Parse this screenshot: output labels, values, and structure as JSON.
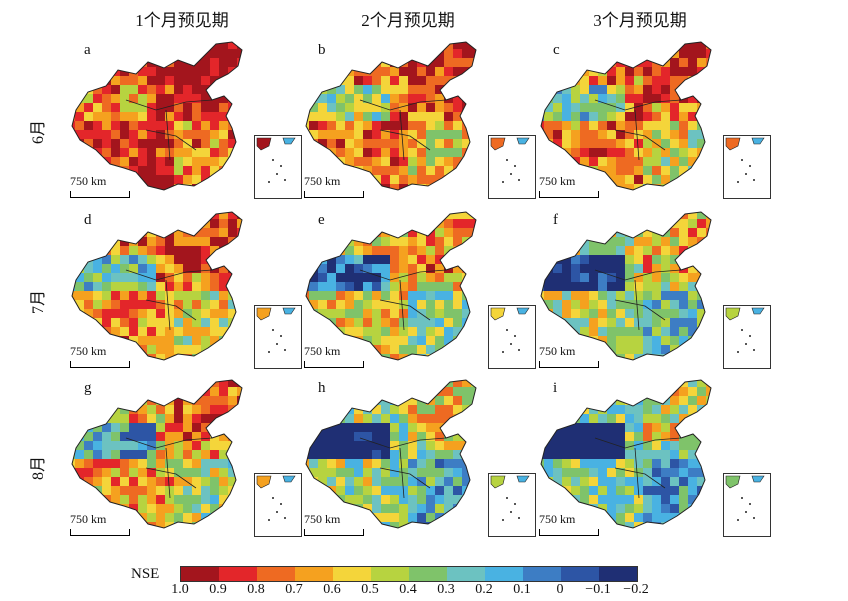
{
  "columns": [
    "1个月预见期",
    "2个月预见期",
    "3个月预见期"
  ],
  "rows": [
    "6月",
    "7月",
    "8月"
  ],
  "panels": [
    {
      "letter": "a",
      "level": 0.9
    },
    {
      "letter": "b",
      "level": 0.75
    },
    {
      "letter": "c",
      "level": 0.72
    },
    {
      "letter": "d",
      "level": 0.7
    },
    {
      "letter": "e",
      "level": 0.55
    },
    {
      "letter": "f",
      "level": 0.45
    },
    {
      "letter": "g",
      "level": 0.62
    },
    {
      "letter": "h",
      "level": 0.4
    },
    {
      "letter": "i",
      "level": 0.35
    }
  ],
  "scale_label": "750 km",
  "legend": {
    "title": "NSE",
    "ticks": [
      "1.0",
      "0.9",
      "0.8",
      "0.7",
      "0.6",
      "0.5",
      "0.4",
      "0.3",
      "0.2",
      "0.1",
      "0",
      "−0.1",
      "−0.2"
    ],
    "colors": [
      "#a3151d",
      "#e3262a",
      "#ee6a22",
      "#f5a11f",
      "#f4d53a",
      "#b7d340",
      "#7fc36a",
      "#6cc2c1",
      "#49b2e2",
      "#3d7dc4",
      "#2d55a5",
      "#1f2f74"
    ]
  }
}
